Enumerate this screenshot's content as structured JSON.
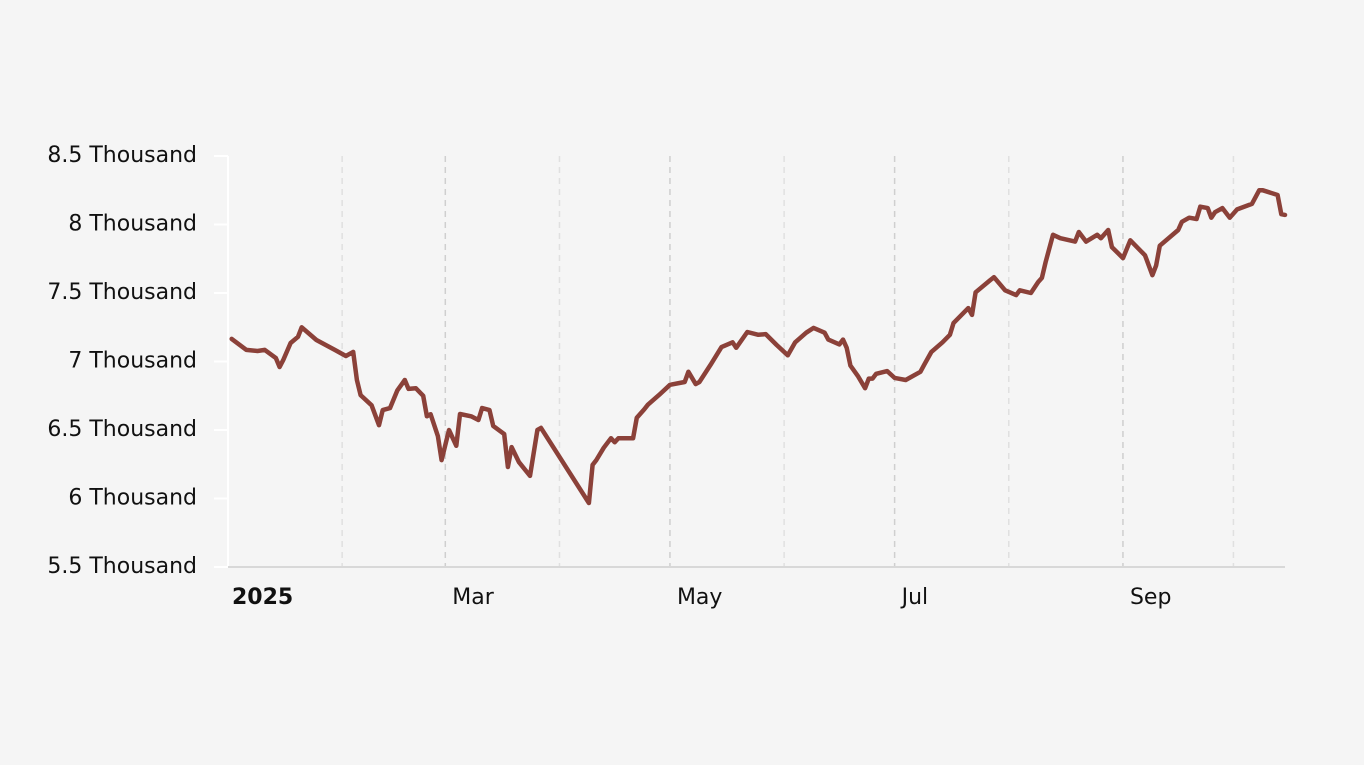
{
  "chart_data": {
    "type": "line",
    "x": [
      "2025-01-02",
      "2025-01-06",
      "2025-01-09",
      "2025-01-11",
      "2025-01-14",
      "2025-01-15",
      "2025-01-16",
      "2025-01-18",
      "2025-01-20",
      "2025-01-21",
      "2025-01-25",
      "2025-01-30",
      "2025-02-02",
      "2025-02-04",
      "2025-02-05",
      "2025-02-06",
      "2025-02-09",
      "2025-02-11",
      "2025-02-12",
      "2025-02-14",
      "2025-02-16",
      "2025-02-18",
      "2025-02-19",
      "2025-02-21",
      "2025-02-23",
      "2025-02-24",
      "2025-02-25",
      "2025-02-27",
      "2025-02-28",
      "2025-03-02",
      "2025-03-04",
      "2025-03-05",
      "2025-03-08",
      "2025-03-10",
      "2025-03-11",
      "2025-03-13",
      "2025-03-14",
      "2025-03-17",
      "2025-03-18",
      "2025-03-19",
      "2025-03-21",
      "2025-03-24",
      "2025-03-26",
      "2025-03-27",
      "2025-04-09",
      "2025-04-10",
      "2025-04-11",
      "2025-04-13",
      "2025-04-15",
      "2025-04-16",
      "2025-04-17",
      "2025-04-21",
      "2025-04-22",
      "2025-04-24",
      "2025-04-25",
      "2025-04-28",
      "2025-05-01",
      "2025-05-05",
      "2025-05-06",
      "2025-05-08",
      "2025-05-09",
      "2025-05-12",
      "2025-05-15",
      "2025-05-18",
      "2025-05-19",
      "2025-05-22",
      "2025-05-25",
      "2025-05-27",
      "2025-05-30",
      "2025-06-02",
      "2025-06-04",
      "2025-06-07",
      "2025-06-09",
      "2025-06-12",
      "2025-06-13",
      "2025-06-16",
      "2025-06-17",
      "2025-06-18",
      "2025-06-19",
      "2025-06-21",
      "2025-06-23",
      "2025-06-24",
      "2025-06-25",
      "2025-06-26",
      "2025-06-29",
      "2025-07-01",
      "2025-07-04",
      "2025-07-08",
      "2025-07-09",
      "2025-07-11",
      "2025-07-14",
      "2025-07-16",
      "2025-07-17",
      "2025-07-21",
      "2025-07-22",
      "2025-07-23",
      "2025-07-27",
      "2025-07-28",
      "2025-07-31",
      "2025-08-03",
      "2025-08-04",
      "2025-08-07",
      "2025-08-09",
      "2025-08-10",
      "2025-08-11",
      "2025-08-13",
      "2025-08-15",
      "2025-08-19",
      "2025-08-20",
      "2025-08-22",
      "2025-08-25",
      "2025-08-26",
      "2025-08-28",
      "2025-08-29",
      "2025-09-01",
      "2025-09-03",
      "2025-09-07",
      "2025-09-09",
      "2025-09-10",
      "2025-09-11",
      "2025-09-16",
      "2025-09-17",
      "2025-09-19",
      "2025-09-21",
      "2025-09-22",
      "2025-09-24",
      "2025-09-25",
      "2025-09-26",
      "2025-09-28",
      "2025-09-30",
      "2025-10-02",
      "2025-10-06",
      "2025-10-08",
      "2025-10-09",
      "2025-10-13",
      "2025-10-14",
      "2025-10-15"
    ],
    "series": [
      {
        "color": "#8b4139",
        "values": [
          7165,
          7085,
          7077,
          7085,
          7025,
          6960,
          7010,
          7135,
          7180,
          7250,
          7157,
          7085,
          7040,
          7070,
          6865,
          6755,
          6680,
          6535,
          6645,
          6660,
          6790,
          6865,
          6800,
          6805,
          6750,
          6600,
          6615,
          6455,
          6280,
          6500,
          6385,
          6617,
          6600,
          6573,
          6660,
          6645,
          6530,
          6470,
          6230,
          6375,
          6265,
          6165,
          6500,
          6515,
          5967,
          6245,
          6280,
          6370,
          6440,
          6410,
          6440,
          6440,
          6590,
          6650,
          6685,
          6755,
          6830,
          6850,
          6925,
          6835,
          6850,
          6975,
          7105,
          7140,
          7100,
          7215,
          7195,
          7200,
          7120,
          7045,
          7140,
          7210,
          7245,
          7210,
          7160,
          7125,
          7160,
          7100,
          6970,
          6895,
          6805,
          6875,
          6875,
          6910,
          6930,
          6880,
          6865,
          6925,
          6975,
          7070,
          7140,
          7195,
          7280,
          7390,
          7340,
          7505,
          7595,
          7615,
          7520,
          7485,
          7520,
          7500,
          7580,
          7610,
          7725,
          7925,
          7900,
          7875,
          7945,
          7875,
          7925,
          7900,
          7960,
          7835,
          7755,
          7885,
          7775,
          7630,
          7700,
          7845,
          7960,
          8020,
          8050,
          8040,
          8130,
          8120,
          8050,
          8090,
          8120,
          8050,
          8110,
          8150,
          8250,
          8250,
          8215,
          8075,
          8070
        ]
      }
    ],
    "xlim": [
      "2025-01-01",
      "2025-10-15"
    ],
    "xticks": [
      {
        "value": "2025-01-01",
        "label": "2025"
      },
      {
        "value": "2025-03-01",
        "label": "Mar"
      },
      {
        "value": "2025-05-01",
        "label": "May"
      },
      {
        "value": "2025-07-01",
        "label": "Jul"
      },
      {
        "value": "2025-09-01",
        "label": "Sep"
      }
    ],
    "minor_xticks": [
      "2025-02-01",
      "2025-04-01",
      "2025-06-01",
      "2025-08-01",
      "2025-10-01"
    ],
    "ylim": [
      5500,
      8500
    ],
    "yticks": [
      {
        "value": 5500,
        "label": "5.5 Thousand"
      },
      {
        "value": 6000,
        "label": "6 Thousand"
      },
      {
        "value": 6500,
        "label": "6.5 Thousand"
      },
      {
        "value": 7000,
        "label": "7 Thousand"
      },
      {
        "value": 7500,
        "label": "7.5 Thousand"
      },
      {
        "value": 8000,
        "label": "8 Thousand"
      },
      {
        "value": 8500,
        "label": "8.5 Thousand"
      }
    ],
    "grid": true
  }
}
